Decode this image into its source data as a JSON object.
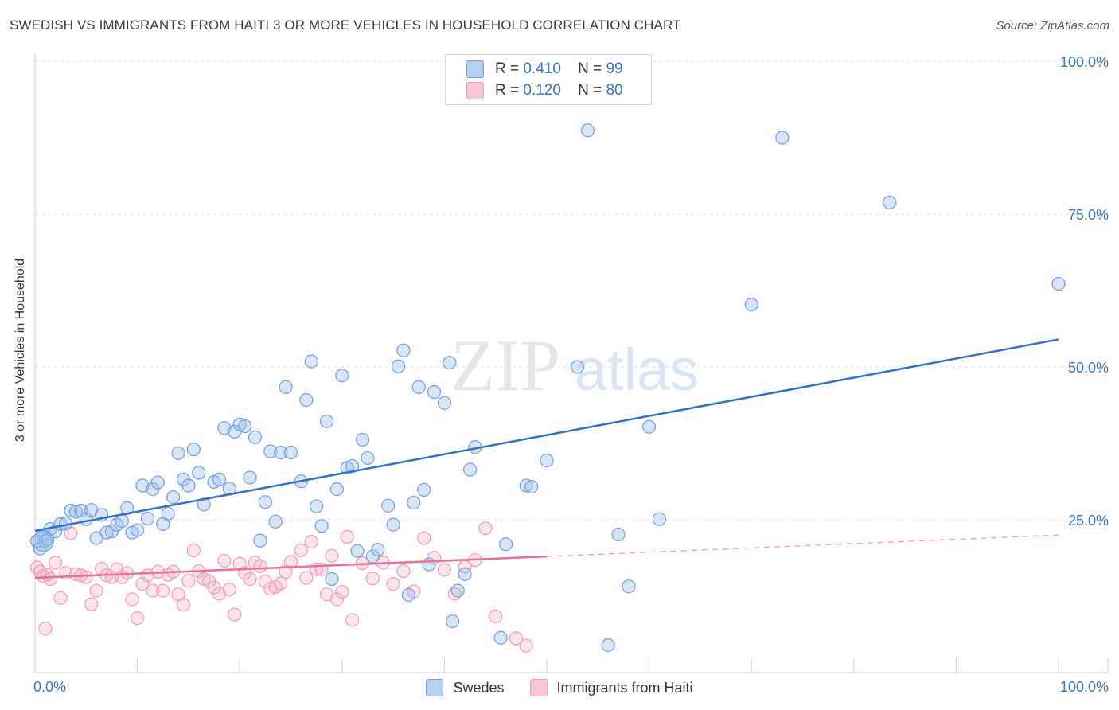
{
  "title": "SWEDISH VS IMMIGRANTS FROM HAITI 3 OR MORE VEHICLES IN HOUSEHOLD CORRELATION CHART",
  "source": "Source: ZipAtlas.com",
  "watermark": {
    "zip": "ZIP",
    "atlas": "atlas"
  },
  "legend_top": [
    {
      "r_label": "R =",
      "r_value": "0.410",
      "n_label": "N =",
      "n_value": "99"
    },
    {
      "r_label": "R =",
      "r_value": "0.120",
      "n_label": "N =",
      "n_value": "80"
    }
  ],
  "chart_data": {
    "type": "scatter",
    "title": "SWEDISH VS IMMIGRANTS FROM HAITI 3 OR MORE VEHICLES IN HOUSEHOLD CORRELATION CHART",
    "xlabel": "",
    "ylabel": "3 or more Vehicles in Household",
    "xlim": [
      0,
      100
    ],
    "ylim": [
      0,
      100
    ],
    "x_tick_labels": [
      "0.0%",
      "100.0%"
    ],
    "y_tick_labels": [
      "25.0%",
      "50.0%",
      "75.0%",
      "100.0%"
    ],
    "y_ticks": [
      25,
      50,
      75,
      100
    ],
    "grid": true,
    "legend_position": "bottom",
    "colors": {
      "swedes": "#6fa0dc",
      "haiti": "#f29ab8",
      "swedes_line": "#2f6fcf",
      "haiti_line": "#e8709a"
    },
    "series": [
      {
        "name": "Swedes",
        "r": 0.41,
        "n": 99,
        "trend": {
          "x": [
            0,
            100
          ],
          "y": [
            23.2,
            54.5
          ]
        },
        "points": [
          [
            0.2,
            21.5
          ],
          [
            0.5,
            20.3
          ],
          [
            0.8,
            22.5
          ],
          [
            1.0,
            21.5
          ],
          [
            1.2,
            21.8
          ],
          [
            1.5,
            23.5
          ],
          [
            2.0,
            23.1
          ],
          [
            2.5,
            24.3
          ],
          [
            3.0,
            24.4
          ],
          [
            3.5,
            26.5
          ],
          [
            4.0,
            26.3
          ],
          [
            4.5,
            26.5
          ],
          [
            5.0,
            25.1
          ],
          [
            5.5,
            26.6
          ],
          [
            6.0,
            22.0
          ],
          [
            6.5,
            25.8
          ],
          [
            7.0,
            22.9
          ],
          [
            7.5,
            23.1
          ],
          [
            8.0,
            24.2
          ],
          [
            8.5,
            24.8
          ],
          [
            9.0,
            26.9
          ],
          [
            9.5,
            22.9
          ],
          [
            10.0,
            23.3
          ],
          [
            10.5,
            30.6
          ],
          [
            11.0,
            25.2
          ],
          [
            11.5,
            30.0
          ],
          [
            12.0,
            31.1
          ],
          [
            12.5,
            24.3
          ],
          [
            13.0,
            26.0
          ],
          [
            13.5,
            28.7
          ],
          [
            14.0,
            35.9
          ],
          [
            14.5,
            31.6
          ],
          [
            15.0,
            30.6
          ],
          [
            15.5,
            36.5
          ],
          [
            16.0,
            32.7
          ],
          [
            16.5,
            27.5
          ],
          [
            17.5,
            31.2
          ],
          [
            18.0,
            31.6
          ],
          [
            18.5,
            40.0
          ],
          [
            19.0,
            30.1
          ],
          [
            19.5,
            39.4
          ],
          [
            20.0,
            40.6
          ],
          [
            20.5,
            40.3
          ],
          [
            21.0,
            31.9
          ],
          [
            21.5,
            38.5
          ],
          [
            22.0,
            21.6
          ],
          [
            22.5,
            27.9
          ],
          [
            23.0,
            36.2
          ],
          [
            23.5,
            24.7
          ],
          [
            24.0,
            36.0
          ],
          [
            24.5,
            46.7
          ],
          [
            25.0,
            36.0
          ],
          [
            26.0,
            31.3
          ],
          [
            26.5,
            44.6
          ],
          [
            27.0,
            50.9
          ],
          [
            27.5,
            27.2
          ],
          [
            28.0,
            24.0
          ],
          [
            28.5,
            41.1
          ],
          [
            29.0,
            15.3
          ],
          [
            29.5,
            30.0
          ],
          [
            30.0,
            48.6
          ],
          [
            30.5,
            33.5
          ],
          [
            31.0,
            33.8
          ],
          [
            31.5,
            19.9
          ],
          [
            32.0,
            38.1
          ],
          [
            32.5,
            35.1
          ],
          [
            33.0,
            19.0
          ],
          [
            33.5,
            20.1
          ],
          [
            34.5,
            27.3
          ],
          [
            35.0,
            24.2
          ],
          [
            35.5,
            50.1
          ],
          [
            36.0,
            52.7
          ],
          [
            36.5,
            12.7
          ],
          [
            37.0,
            27.8
          ],
          [
            37.5,
            46.7
          ],
          [
            38.0,
            29.9
          ],
          [
            38.5,
            17.7
          ],
          [
            39.0,
            45.9
          ],
          [
            40.0,
            44.1
          ],
          [
            40.5,
            50.7
          ],
          [
            40.8,
            8.4
          ],
          [
            41.3,
            13.4
          ],
          [
            42.0,
            16.1
          ],
          [
            42.5,
            33.2
          ],
          [
            43.0,
            36.9
          ],
          [
            45.5,
            5.7
          ],
          [
            46.0,
            21.0
          ],
          [
            48.0,
            30.6
          ],
          [
            48.5,
            30.4
          ],
          [
            50.0,
            34.7
          ],
          [
            53.0,
            50.0
          ],
          [
            54.0,
            88.7
          ],
          [
            56.0,
            4.5
          ],
          [
            57.0,
            22.6
          ],
          [
            58.0,
            14.1
          ],
          [
            60.0,
            40.2
          ],
          [
            61.0,
            25.1
          ],
          [
            70.0,
            60.2
          ],
          [
            73.0,
            87.5
          ],
          [
            83.5,
            76.9
          ],
          [
            100.0,
            63.6
          ]
        ]
      },
      {
        "name": "Immigrants from Haiti",
        "r": 0.12,
        "n": 80,
        "trend": {
          "x": [
            0,
            50
          ],
          "y": [
            15.5,
            19.0
          ]
        },
        "trend_dashed": {
          "x": [
            50,
            100
          ],
          "y": [
            19.0,
            22.5
          ]
        },
        "points": [
          [
            0.2,
            17.2
          ],
          [
            0.5,
            16.5
          ],
          [
            0.8,
            15.8
          ],
          [
            1.0,
            7.2
          ],
          [
            1.2,
            16.0
          ],
          [
            1.5,
            15.3
          ],
          [
            2.0,
            18.0
          ],
          [
            2.5,
            12.2
          ],
          [
            3.0,
            16.3
          ],
          [
            3.5,
            22.8
          ],
          [
            4.0,
            16.1
          ],
          [
            4.5,
            15.9
          ],
          [
            5.0,
            15.6
          ],
          [
            5.5,
            11.2
          ],
          [
            6.0,
            13.4
          ],
          [
            6.5,
            17.0
          ],
          [
            7.0,
            15.9
          ],
          [
            7.5,
            15.6
          ],
          [
            8.0,
            16.9
          ],
          [
            8.5,
            15.6
          ],
          [
            9.0,
            16.3
          ],
          [
            9.5,
            12.0
          ],
          [
            10.0,
            8.9
          ],
          [
            10.5,
            14.5
          ],
          [
            11.0,
            15.9
          ],
          [
            11.5,
            13.4
          ],
          [
            12.0,
            16.5
          ],
          [
            12.5,
            13.4
          ],
          [
            13.0,
            16.0
          ],
          [
            13.5,
            16.5
          ],
          [
            14.0,
            12.8
          ],
          [
            14.5,
            11.1
          ],
          [
            15.0,
            15.0
          ],
          [
            15.5,
            20.0
          ],
          [
            16.0,
            16.6
          ],
          [
            16.5,
            15.3
          ],
          [
            17.0,
            14.9
          ],
          [
            17.5,
            13.9
          ],
          [
            18.0,
            12.9
          ],
          [
            18.5,
            18.3
          ],
          [
            19.0,
            13.6
          ],
          [
            19.5,
            9.5
          ],
          [
            20.0,
            17.8
          ],
          [
            20.5,
            16.3
          ],
          [
            21.0,
            15.3
          ],
          [
            21.5,
            18.0
          ],
          [
            22.0,
            17.4
          ],
          [
            22.5,
            14.9
          ],
          [
            23.0,
            13.7
          ],
          [
            23.5,
            14.0
          ],
          [
            24.0,
            14.6
          ],
          [
            24.5,
            16.5
          ],
          [
            25.0,
            18.1
          ],
          [
            26.0,
            20.0
          ],
          [
            26.5,
            15.5
          ],
          [
            27.0,
            21.4
          ],
          [
            27.5,
            16.9
          ],
          [
            28.0,
            16.9
          ],
          [
            28.5,
            12.8
          ],
          [
            29.0,
            19.1
          ],
          [
            29.5,
            12.0
          ],
          [
            30.0,
            13.2
          ],
          [
            30.5,
            22.2
          ],
          [
            31.0,
            8.6
          ],
          [
            32.0,
            17.9
          ],
          [
            33.0,
            15.4
          ],
          [
            34.0,
            18.0
          ],
          [
            35.0,
            14.5
          ],
          [
            36.0,
            16.6
          ],
          [
            37.0,
            13.3
          ],
          [
            38.0,
            22.0
          ],
          [
            39.0,
            18.8
          ],
          [
            40.0,
            16.8
          ],
          [
            41.0,
            12.9
          ],
          [
            42.0,
            17.3
          ],
          [
            43.0,
            18.4
          ],
          [
            44.0,
            23.6
          ],
          [
            45.0,
            9.2
          ],
          [
            47.0,
            5.6
          ],
          [
            48.0,
            4.4
          ]
        ]
      }
    ]
  },
  "legend_bottom": [
    "Swedes",
    "Immigrants from Haiti"
  ]
}
